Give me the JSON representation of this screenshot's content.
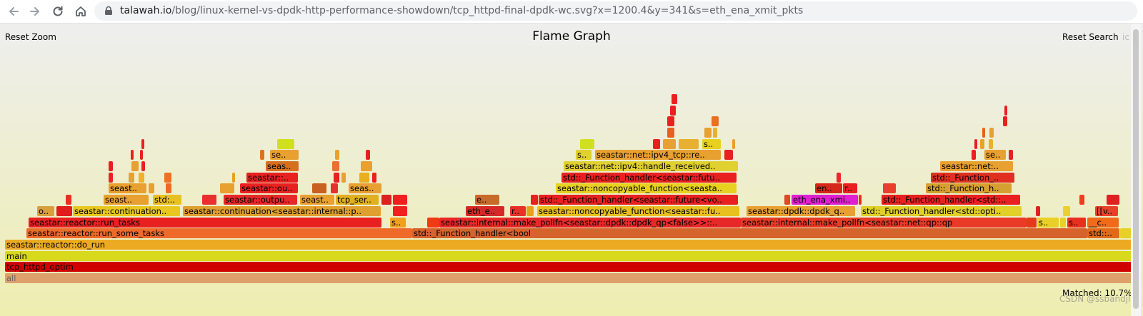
{
  "browser": {
    "url_host": "talawah.io",
    "url_rest": "/blog/linux-kernel-vs-dpdk-http-performance-showdown/tcp_httpd-final-dpdk-wc.svg?x=1200.4&y=341&s=eth_ena_xmit_pkts"
  },
  "flamegraph": {
    "title": "Flame Graph",
    "reset_zoom": "Reset Zoom",
    "reset_search": "Reset Search",
    "ic": "ic",
    "matched": "Matched: 10.7%",
    "watermark": "CSDN @ssbandjl"
  },
  "frames": [
    {
      "name": "all",
      "row": 0,
      "start": 7,
      "width": 1580,
      "color": "#dea06a",
      "text_color": "#666666"
    },
    {
      "name": "tcp_httpd_optim",
      "row": 1,
      "start": 7,
      "width": 1580,
      "color": "#d00000"
    },
    {
      "name": "main",
      "row": 2,
      "start": 7,
      "width": 1580,
      "color": "#d8d81c"
    },
    {
      "name": "seastar::reactor::do_run",
      "row": 3,
      "start": 7,
      "width": 1580,
      "color": "#ecaa22"
    },
    {
      "name": "seastar::reactor::run_some_tasks",
      "row": 4,
      "start": 37,
      "width": 540,
      "color": "#ee6a2a"
    },
    {
      "name": "std::_Function_handler<bool",
      "row": 4,
      "start": 577,
      "width": 945,
      "color": "#d6622c"
    },
    {
      "name": "std::_Function_handler<bool",
      "row": 4,
      "start": 1522,
      "width": 45,
      "color": "#e06a18",
      "text": "std::.."
    },
    {
      "name": "",
      "row": 4,
      "start": 1568,
      "width": 16,
      "color": "#e8d028"
    },
    {
      "name": "seastar::reactor::run_tasks",
      "row": 5,
      "start": 40,
      "width": 494,
      "color": "#e82020"
    },
    {
      "name": "seastar::reactor::run_tasks",
      "row": 5,
      "start": 546,
      "width": 22,
      "color": "#f0a020",
      "text": "s.."
    },
    {
      "name": "",
      "row": 5,
      "start": 598,
      "width": 17,
      "color": "#f03a14"
    },
    {
      "name": "seastar::internal::make_pollfn<seastar::dpdk::dpdk_qp<false>>",
      "row": 5,
      "start": 615,
      "width": 422,
      "color": "#e82828",
      "text": "seastar::internal::make_pollfn<seastar::dpdk::dpdk_qp<false>>::.."
    },
    {
      "name": "seastar::internal::make_pollfn<seastar::net::qp::qp",
      "row": 5,
      "start": 1037,
      "width": 400,
      "color": "#e83a26"
    },
    {
      "name": "",
      "row": 5,
      "start": 1437,
      "width": 14,
      "color": "#e23a1a"
    },
    {
      "name": "",
      "row": 5,
      "start": 1452,
      "width": 4,
      "color": "#c82020"
    },
    {
      "name": "s..",
      "row": 5,
      "start": 1452,
      "width": 30,
      "color": "#e8d028"
    },
    {
      "name": "",
      "row": 5,
      "start": 1484,
      "width": 8,
      "color": "#e8d028"
    },
    {
      "name": "s..",
      "row": 5,
      "start": 1494,
      "width": 26,
      "color": "#e83020"
    },
    {
      "name": "__c..",
      "row": 5,
      "start": 1522,
      "width": 44,
      "color": "#f06a1a"
    },
    {
      "name": "o..",
      "row": 6,
      "start": 52,
      "width": 24,
      "color": "#d6a040"
    },
    {
      "name": "",
      "row": 6,
      "start": 79,
      "width": 22,
      "color": "#e01c1c"
    },
    {
      "name": "seastar::continuation..",
      "row": 6,
      "start": 102,
      "width": 150,
      "color": "#e8c820"
    },
    {
      "name": "seastar::continuation<seastar::internal::p..",
      "row": 6,
      "start": 256,
      "width": 277,
      "color": "#e0a030"
    },
    {
      "name": "",
      "row": 6,
      "start": 550,
      "width": 20,
      "color": "#f02020"
    },
    {
      "name": "eth_e..",
      "row": 6,
      "start": 652,
      "width": 54,
      "color": "#d62828"
    },
    {
      "name": "r..",
      "row": 6,
      "start": 714,
      "width": 22,
      "color": "#e83026"
    },
    {
      "name": "",
      "row": 6,
      "start": 737,
      "width": 10,
      "color": "#e8a020"
    },
    {
      "name": "seastar::noncopyable_function<seastar::fu..",
      "row": 6,
      "start": 752,
      "width": 283,
      "color": "#e8c020"
    },
    {
      "name": "seastar::dpdk::dpdk_q..",
      "row": 6,
      "start": 1045,
      "width": 152,
      "color": "#e8a030"
    },
    {
      "name": "std::_Function_handler<std::opti..",
      "row": 6,
      "start": 1205,
      "width": 225,
      "color": "#e0d028"
    },
    {
      "name": "",
      "row": 6,
      "start": 1450,
      "width": 6,
      "color": "#e02020"
    },
    {
      "name": "",
      "row": 6,
      "start": 1488,
      "width": 10,
      "color": "#e8d030"
    },
    {
      "name": "[[v..",
      "row": 6,
      "start": 1533,
      "width": 32,
      "color": "#e8402a"
    },
    {
      "name": "",
      "row": 7,
      "start": 92,
      "width": 8,
      "color": "#e83020"
    },
    {
      "name": "seast..",
      "row": 7,
      "start": 145,
      "width": 63,
      "color": "#e8a030"
    },
    {
      "name": "std:..",
      "row": 7,
      "start": 214,
      "width": 40,
      "color": "#e8c020"
    },
    {
      "name": "",
      "row": 7,
      "start": 283,
      "width": 20,
      "color": "#e83030"
    },
    {
      "name": "seastar::outpu..",
      "row": 7,
      "start": 313,
      "width": 103,
      "color": "#e82828"
    },
    {
      "name": "seast..",
      "row": 7,
      "start": 420,
      "width": 48,
      "color": "#e8a030"
    },
    {
      "name": "tcp_ser..",
      "row": 7,
      "start": 470,
      "width": 60,
      "color": "#e0b020"
    },
    {
      "name": "",
      "row": 7,
      "start": 534,
      "width": 14,
      "color": "#e02020"
    },
    {
      "name": "",
      "row": 7,
      "start": 550,
      "width": 20,
      "color": "#f02020"
    },
    {
      "name": "e..",
      "row": 7,
      "start": 665,
      "width": 34,
      "color": "#c86a2a"
    },
    {
      "name": "",
      "row": 7,
      "start": 743,
      "width": 10,
      "color": "#e82020"
    },
    {
      "name": "std::_Function_handler<seastar::future<vo..",
      "row": 7,
      "start": 754,
      "width": 279,
      "color": "#e82020"
    },
    {
      "name": "",
      "row": 7,
      "start": 1098,
      "width": 8,
      "color": "#e04828"
    },
    {
      "name": "eth_ena_xmi..",
      "row": 7,
      "start": 1108,
      "width": 93,
      "color": "#e020d0"
    },
    {
      "name": "",
      "row": 7,
      "start": 1202,
      "width": 4,
      "color": "#e03020"
    },
    {
      "name": "std::_Function_handler<std::..",
      "row": 7,
      "start": 1234,
      "width": 194,
      "color": "#e82020"
    },
    {
      "name": "",
      "row": 7,
      "start": 1511,
      "width": 7,
      "color": "#e84020"
    },
    {
      "name": "",
      "row": 7,
      "start": 1549,
      "width": 18,
      "color": "#e02020"
    },
    {
      "name": "",
      "row": 8,
      "start": 152,
      "width": 52,
      "color": "#e8a030"
    },
    {
      "name": "seast..",
      "row": 8,
      "start": 152,
      "width": 53,
      "color": "#e8a030"
    },
    {
      "name": "",
      "row": 8,
      "start": 208,
      "width": 8,
      "color": "#e8a030"
    },
    {
      "name": "",
      "row": 8,
      "start": 232,
      "width": 8,
      "color": "#ee6a20"
    },
    {
      "name": "",
      "row": 8,
      "start": 308,
      "width": 20,
      "color": "#e8a030"
    },
    {
      "name": "seastar::ou..",
      "row": 8,
      "start": 336,
      "width": 81,
      "color": "#e82020"
    },
    {
      "name": "",
      "row": 8,
      "start": 437,
      "width": 20,
      "color": "#c86020"
    },
    {
      "name": "",
      "row": 8,
      "start": 463,
      "width": 10,
      "color": "#e83030"
    },
    {
      "name": "seas..",
      "row": 8,
      "start": 488,
      "width": 44,
      "color": "#e8a030"
    },
    {
      "name": "",
      "row": 8,
      "start": 530,
      "width": 4,
      "color": "#e8a030"
    },
    {
      "name": "seastar::noncopyable_function<seasta..",
      "row": 8,
      "start": 778,
      "width": 253,
      "color": "#e8d020"
    },
    {
      "name": "en..",
      "row": 8,
      "start": 1141,
      "width": 38,
      "color": "#d62818"
    },
    {
      "name": "r..",
      "row": 8,
      "start": 1180,
      "width": 20,
      "color": "#e82020"
    },
    {
      "name": "",
      "row": 8,
      "start": 1236,
      "width": 18,
      "color": "#e8402a"
    },
    {
      "name": "std::_Function_h..",
      "row": 8,
      "start": 1296,
      "width": 120,
      "color": "#d6a030"
    },
    {
      "name": "",
      "row": 9,
      "start": 152,
      "width": 6,
      "color": "#f02020"
    },
    {
      "name": "",
      "row": 9,
      "start": 180,
      "width": 8,
      "color": "#e8a030"
    },
    {
      "name": "",
      "row": 9,
      "start": 194,
      "width": 8,
      "color": "#f0b030"
    },
    {
      "name": "",
      "row": 9,
      "start": 230,
      "width": 10,
      "color": "#ee7020"
    },
    {
      "name": "",
      "row": 9,
      "start": 325,
      "width": 4,
      "color": "#e8a020"
    },
    {
      "name": "seastar::..",
      "row": 9,
      "start": 345,
      "width": 72,
      "color": "#e82020"
    },
    {
      "name": "",
      "row": 9,
      "start": 467,
      "width": 8,
      "color": "#e82020"
    },
    {
      "name": "",
      "row": 9,
      "start": 478,
      "width": 6,
      "color": "#e8a030"
    },
    {
      "name": "",
      "row": 9,
      "start": 503,
      "width": 14,
      "color": "#e8b020"
    },
    {
      "name": "",
      "row": 9,
      "start": 521,
      "width": 6,
      "color": "#e82020"
    },
    {
      "name": "std::_Function_handler<seastar::futu..",
      "row": 9,
      "start": 786,
      "width": 245,
      "color": "#e82020"
    },
    {
      "name": "",
      "row": 9,
      "start": 1171,
      "width": 6,
      "color": "#e82828"
    },
    {
      "name": "std::_Function_..",
      "row": 9,
      "start": 1303,
      "width": 117,
      "color": "#e03020"
    },
    {
      "name": "",
      "row": 10,
      "start": 152,
      "width": 6,
      "color": "#e82020"
    },
    {
      "name": "",
      "row": 10,
      "start": 184,
      "width": 10,
      "color": "#e8a030"
    },
    {
      "name": "",
      "row": 10,
      "start": 198,
      "width": 5,
      "color": "#e82020"
    },
    {
      "name": "seas..",
      "row": 10,
      "start": 372,
      "width": 46,
      "color": "#d67020"
    },
    {
      "name": "",
      "row": 10,
      "start": 465,
      "width": 10,
      "color": "#e87030"
    },
    {
      "name": "",
      "row": 10,
      "start": 505,
      "width": 16,
      "color": "#e8a030"
    },
    {
      "name": "seastar::net::ipv4::handle_received..",
      "row": 10,
      "start": 789,
      "width": 244,
      "color": "#e0d030"
    },
    {
      "name": "seastar::net:..",
      "row": 10,
      "start": 1316,
      "width": 102,
      "color": "#e8a030"
    },
    {
      "name": "",
      "row": 11,
      "start": 183,
      "width": 4,
      "color": "#e82020"
    },
    {
      "name": "",
      "row": 11,
      "start": 196,
      "width": 4,
      "color": "#e82020"
    },
    {
      "name": "",
      "row": 11,
      "start": 364,
      "width": 6,
      "color": "#e07020"
    },
    {
      "name": "se..",
      "row": 11,
      "start": 378,
      "width": 40,
      "color": "#e8a030"
    },
    {
      "name": "",
      "row": 11,
      "start": 469,
      "width": 6,
      "color": "#e8a030"
    },
    {
      "name": "",
      "row": 11,
      "start": 512,
      "width": 6,
      "color": "#e82020"
    },
    {
      "name": "s..",
      "row": 11,
      "start": 806,
      "width": 22,
      "color": "#e0d030"
    },
    {
      "name": "seastar::net::ipv4_tcp::re..",
      "row": 11,
      "start": 833,
      "width": 176,
      "color": "#e8a030"
    },
    {
      "name": "",
      "row": 11,
      "start": 1014,
      "width": 12,
      "color": "#e82020"
    },
    {
      "name": "",
      "row": 11,
      "start": 1360,
      "width": 6,
      "color": "#e82020"
    },
    {
      "name": "se..",
      "row": 11,
      "start": 1378,
      "width": 30,
      "color": "#e8a030"
    },
    {
      "name": "",
      "row": 11,
      "start": 1412,
      "width": 6,
      "color": "#e82020"
    },
    {
      "name": "",
      "row": 12,
      "start": 198,
      "width": 4,
      "color": "#e82020"
    },
    {
      "name": "",
      "row": 12,
      "start": 388,
      "width": 24,
      "color": "#d0e020"
    },
    {
      "name": "",
      "row": 12,
      "start": 812,
      "width": 20,
      "color": "#d0e020"
    },
    {
      "name": "",
      "row": 12,
      "start": 914,
      "width": 10,
      "color": "#e82020"
    },
    {
      "name": "",
      "row": 12,
      "start": 928,
      "width": 18,
      "color": "#e8a030"
    },
    {
      "name": "",
      "row": 12,
      "start": 950,
      "width": 28,
      "color": "#e8b030"
    },
    {
      "name": "s..",
      "row": 12,
      "start": 983,
      "width": 26,
      "color": "#e8d020"
    },
    {
      "name": "",
      "row": 12,
      "start": 1025,
      "width": 4,
      "color": "#e8a030"
    },
    {
      "name": "",
      "row": 12,
      "start": 1364,
      "width": 4,
      "color": "#e82020"
    },
    {
      "name": "",
      "row": 12,
      "start": 1372,
      "width": 6,
      "color": "#e8a030"
    },
    {
      "name": "",
      "row": 12,
      "start": 1384,
      "width": 6,
      "color": "#e8b030"
    },
    {
      "name": "",
      "row": 13,
      "start": 934,
      "width": 10,
      "color": "#e86020"
    },
    {
      "name": "",
      "row": 13,
      "start": 986,
      "width": 10,
      "color": "#e8a030"
    },
    {
      "name": "",
      "row": 13,
      "start": 998,
      "width": 6,
      "color": "#e8b030"
    },
    {
      "name": "",
      "row": 13,
      "start": 1375,
      "width": 4,
      "color": "#e86020"
    },
    {
      "name": "",
      "row": 13,
      "start": 1385,
      "width": 6,
      "color": "#e8a030"
    },
    {
      "name": "",
      "row": 14,
      "start": 934,
      "width": 10,
      "color": "#e82020"
    },
    {
      "name": "",
      "row": 14,
      "start": 996,
      "width": 10,
      "color": "#e87020"
    },
    {
      "name": "",
      "row": 14,
      "start": 1404,
      "width": 6,
      "color": "#e82020"
    },
    {
      "name": "",
      "row": 15,
      "start": 938,
      "width": 8,
      "color": "#e82020"
    },
    {
      "name": "",
      "row": 15,
      "start": 1406,
      "width": 4,
      "color": "#e82020"
    },
    {
      "name": "",
      "row": 16,
      "start": 940,
      "width": 8,
      "color": "#e82020"
    }
  ]
}
